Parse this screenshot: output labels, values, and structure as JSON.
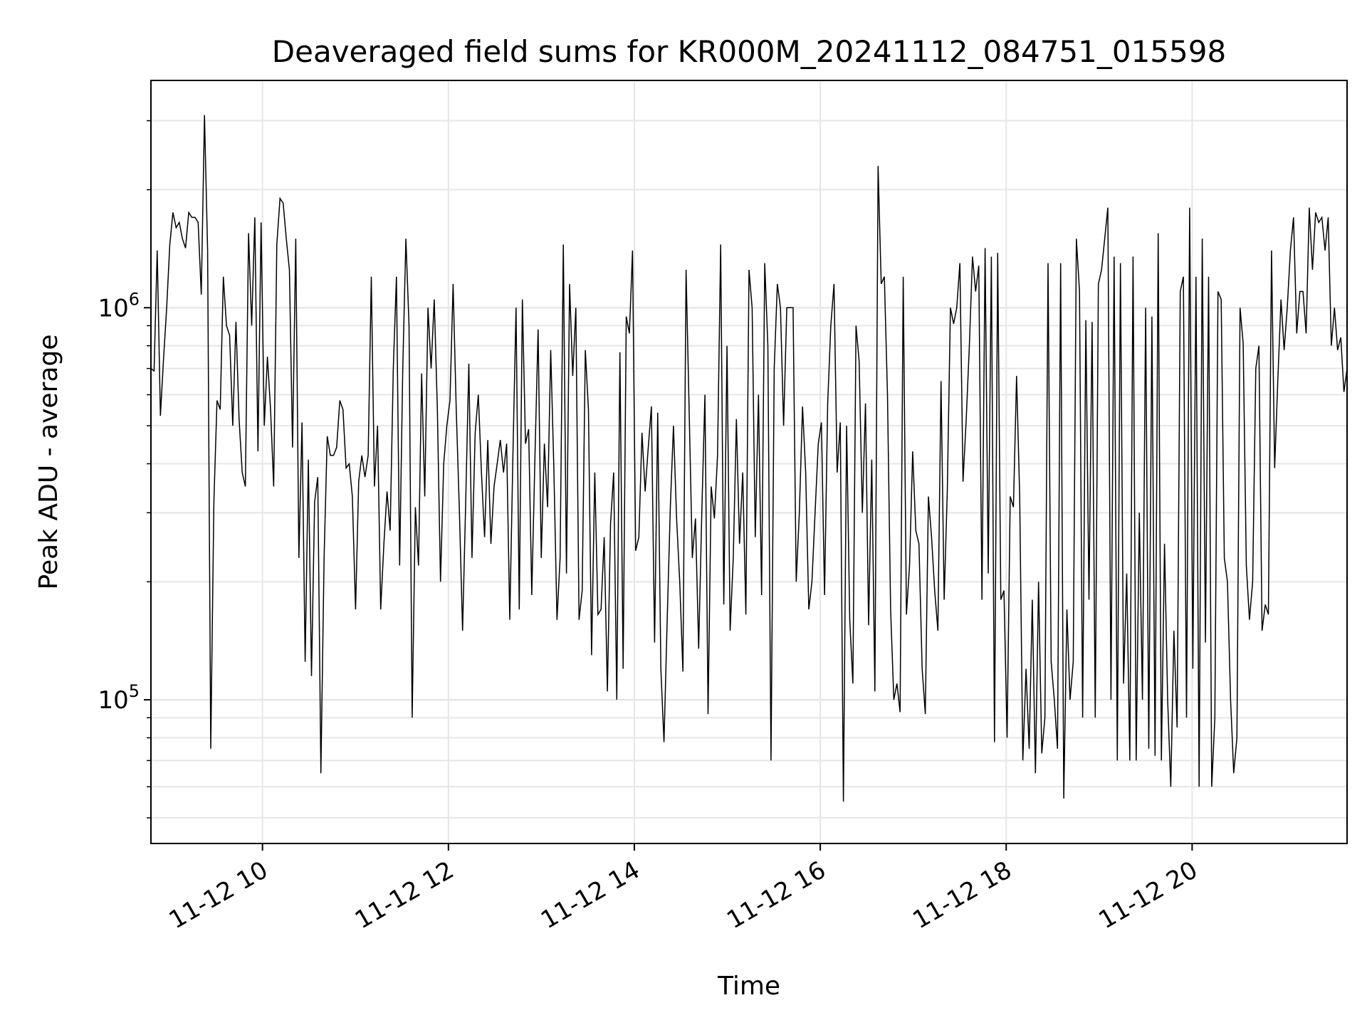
{
  "chart_data": {
    "type": "line",
    "title": "Deaveraged field sums for KR000M_20241112_084751_015598",
    "xlabel": "Time",
    "ylabel": "Peak ADU - average",
    "yscale": "log",
    "ylim": [
      43000,
      3800000
    ],
    "xlim": [
      "11-12 08:48",
      "11-12 21:40"
    ],
    "x_tick_labels": [
      "11-12 10",
      "11-12 12",
      "11-12 14",
      "11-12 16",
      "11-12 18",
      "11-12 20"
    ],
    "y_tick_labels": [
      {
        "base": "10",
        "exp": "5",
        "value": 100000
      },
      {
        "base": "10",
        "exp": "6",
        "value": 1000000
      }
    ],
    "grid": true,
    "legend": "none",
    "line_color": "#000000",
    "grid_color": "#e6e6e6",
    "series": [
      {
        "x_start": "11-12 08:48",
        "x_end": "11-12 21:40",
        "values": [
          700000,
          690000,
          1400000,
          530000,
          740000,
          1000000,
          1450000,
          1750000,
          1600000,
          1650000,
          1500000,
          1420000,
          1750000,
          1700000,
          1700000,
          1650000,
          1080000,
          3100000,
          1400000,
          75000,
          320000,
          580000,
          550000,
          1200000,
          900000,
          850000,
          500000,
          920000,
          520000,
          380000,
          350000,
          1550000,
          900000,
          1700000,
          430000,
          1650000,
          500000,
          750000,
          550000,
          350000,
          1450000,
          1900000,
          1850000,
          1500000,
          1250000,
          440000,
          1500000,
          230000,
          510000,
          125000,
          410000,
          115000,
          320000,
          370000,
          65000,
          230000,
          470000,
          420000,
          420000,
          440000,
          580000,
          550000,
          390000,
          400000,
          330000,
          170000,
          360000,
          420000,
          370000,
          420000,
          1200000,
          350000,
          500000,
          170000,
          250000,
          340000,
          270000,
          700000,
          1200000,
          220000,
          700000,
          1500000,
          900000,
          90000,
          310000,
          220000,
          680000,
          330000,
          1000000,
          700000,
          1050000,
          550000,
          200000,
          400000,
          500000,
          580000,
          1150000,
          550000,
          300000,
          150000,
          320000,
          720000,
          230000,
          480000,
          600000,
          380000,
          260000,
          460000,
          250000,
          350000,
          400000,
          460000,
          380000,
          450000,
          160000,
          420000,
          1000000,
          170000,
          1050000,
          450000,
          490000,
          185000,
          420000,
          880000,
          230000,
          450000,
          310000,
          780000,
          390000,
          160000,
          230000,
          1450000,
          210000,
          1150000,
          670000,
          1000000,
          160000,
          190000,
          780000,
          550000,
          130000,
          380000,
          165000,
          170000,
          260000,
          105000,
          280000,
          380000,
          100000,
          770000,
          120000,
          950000,
          860000,
          1400000,
          240000,
          260000,
          480000,
          340000,
          440000,
          560000,
          140000,
          540000,
          120000,
          78000,
          160000,
          310000,
          500000,
          290000,
          200000,
          118000,
          1250000,
          540000,
          230000,
          290000,
          135000,
          300000,
          600000,
          92000,
          350000,
          290000,
          420000,
          1450000,
          175000,
          800000,
          150000,
          230000,
          520000,
          250000,
          380000,
          165000,
          1250000,
          1000000,
          260000,
          600000,
          185000,
          1300000,
          800000,
          70000,
          700000,
          1150000,
          1000000,
          500000,
          1000000,
          1000000,
          1000000,
          200000,
          300000,
          560000,
          380000,
          170000,
          200000,
          300000,
          450000,
          510000,
          185000,
          570000,
          900000,
          1150000,
          380000,
          510000,
          55000,
          500000,
          160000,
          110000,
          900000,
          730000,
          300000,
          570000,
          155000,
          410000,
          105000,
          2300000,
          1150000,
          1200000,
          600000,
          170000,
          100000,
          110000,
          93000,
          1200000,
          165000,
          220000,
          430000,
          270000,
          250000,
          120000,
          92000,
          330000,
          260000,
          190000,
          150000,
          650000,
          180000,
          340000,
          1000000,
          910000,
          1000000,
          1300000,
          360000,
          520000,
          800000,
          1350000,
          1100000,
          1280000,
          180000,
          1420000,
          210000,
          1350000,
          78000,
          1380000,
          180000,
          190000,
          80000,
          330000,
          310000,
          670000,
          330000,
          70000,
          120000,
          75000,
          180000,
          65000,
          200000,
          73000,
          90000,
          1300000,
          125000,
          100000,
          75000,
          1300000,
          56000,
          170000,
          100000,
          125000,
          1500000,
          1100000,
          90000,
          930000,
          180000,
          920000,
          90000,
          1150000,
          1250000,
          1500000,
          1800000,
          100000,
          1350000,
          70000,
          1300000,
          110000,
          210000,
          70000,
          1350000,
          70000,
          300000,
          100000,
          1000000,
          75000,
          950000,
          72000,
          1550000,
          70000,
          250000,
          100000,
          60000,
          150000,
          85000,
          1100000,
          1200000,
          90000,
          1800000,
          120000,
          1200000,
          60000,
          1500000,
          140000,
          1200000,
          60000,
          90000,
          1100000,
          1050000,
          230000,
          200000,
          100000,
          65000,
          80000,
          1000000,
          810000,
          220000,
          160000,
          200000,
          700000,
          800000,
          150000,
          175000,
          165000,
          1400000,
          390000,
          650000,
          1050000,
          780000,
          1000000,
          1400000,
          1700000,
          860000,
          1100000,
          1100000,
          860000,
          1800000,
          1250000,
          1750000,
          1650000,
          1700000,
          1400000,
          1700000,
          800000,
          1000000,
          780000,
          840000,
          610000,
          700000
        ]
      }
    ]
  }
}
